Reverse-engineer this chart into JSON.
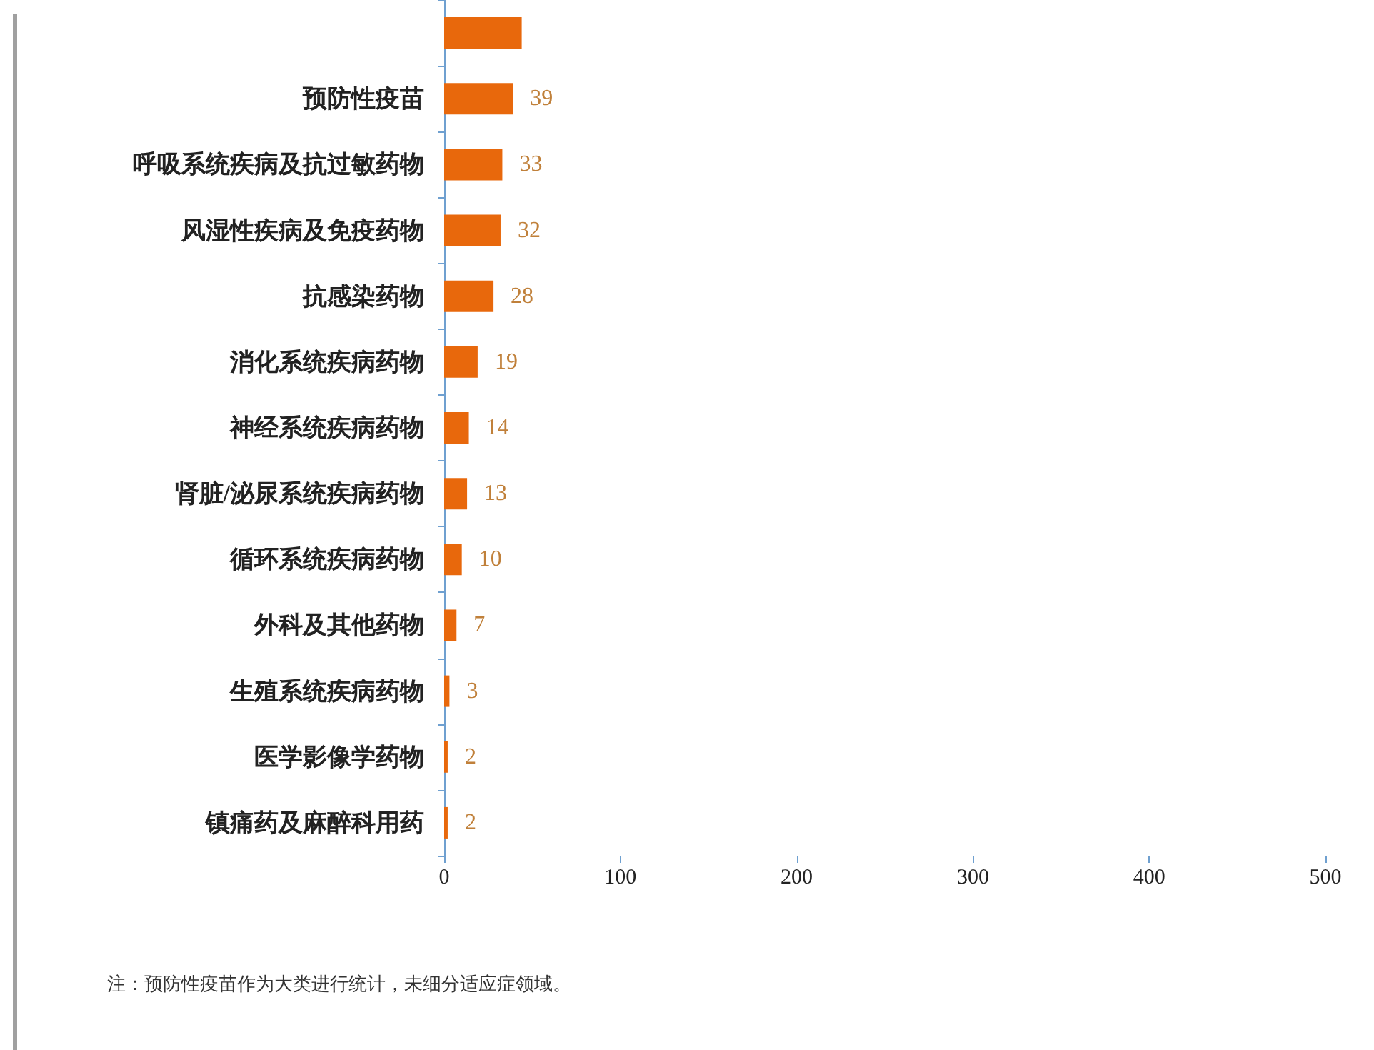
{
  "chart_data": {
    "type": "bar",
    "orientation": "horizontal",
    "categories": [
      null,
      "预防性疫苗",
      "呼吸系统疾病及抗过敏药物",
      "风湿性疾病及免疫药物",
      "抗感染药物",
      "消化系统疾病药物",
      "神经系统疾病药物",
      "肾脏/泌尿系统疾病药物",
      "循环系统疾病药物",
      "外科及其他药物",
      "生殖系统疾病药物",
      "医学影像学药物",
      "镇痛药及麻醉科用药"
    ],
    "values": [
      44,
      39,
      33,
      32,
      28,
      19,
      14,
      13,
      10,
      7,
      3,
      2,
      2
    ],
    "value_labels": [
      null,
      "39",
      "33",
      "32",
      "28",
      "19",
      "14",
      "13",
      "10",
      "7",
      "3",
      "2",
      "2"
    ],
    "color": "#e8680c",
    "xlim": [
      0,
      500
    ],
    "xticks": [
      0,
      100,
      200,
      300,
      400,
      500
    ],
    "grid": false,
    "annotations": [
      "注：预防性疫苗作为大类进行统计，未细分适应症领域。"
    ]
  }
}
